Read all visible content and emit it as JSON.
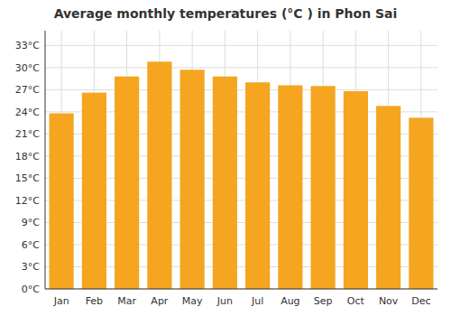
{
  "chart_data": {
    "type": "bar",
    "title": "Average monthly temperatures (°C ) in Phon Sai",
    "categories": [
      "Jan",
      "Feb",
      "Mar",
      "Apr",
      "May",
      "Jun",
      "Jul",
      "Aug",
      "Sep",
      "Oct",
      "Nov",
      "Dec"
    ],
    "values": [
      23.8,
      26.6,
      28.8,
      30.8,
      29.7,
      28.8,
      28.0,
      27.6,
      27.5,
      26.8,
      24.8,
      23.2
    ],
    "color": "#F5A520",
    "ylim": [
      0,
      35
    ],
    "yticks": [
      {
        "value": 0,
        "label": "0°C"
      },
      {
        "value": 3,
        "label": "3°C"
      },
      {
        "value": 6,
        "label": "6°C"
      },
      {
        "value": 9,
        "label": "9°C"
      },
      {
        "value": 12,
        "label": "12°C"
      },
      {
        "value": 15,
        "label": "15°C"
      },
      {
        "value": 18,
        "label": "18°C"
      },
      {
        "value": 21,
        "label": "21°C"
      },
      {
        "value": 24,
        "label": "24°C"
      },
      {
        "value": 27,
        "label": "27°C"
      },
      {
        "value": 30,
        "label": "30°C"
      },
      {
        "value": 33,
        "label": "33°C"
      }
    ],
    "grid": true
  }
}
